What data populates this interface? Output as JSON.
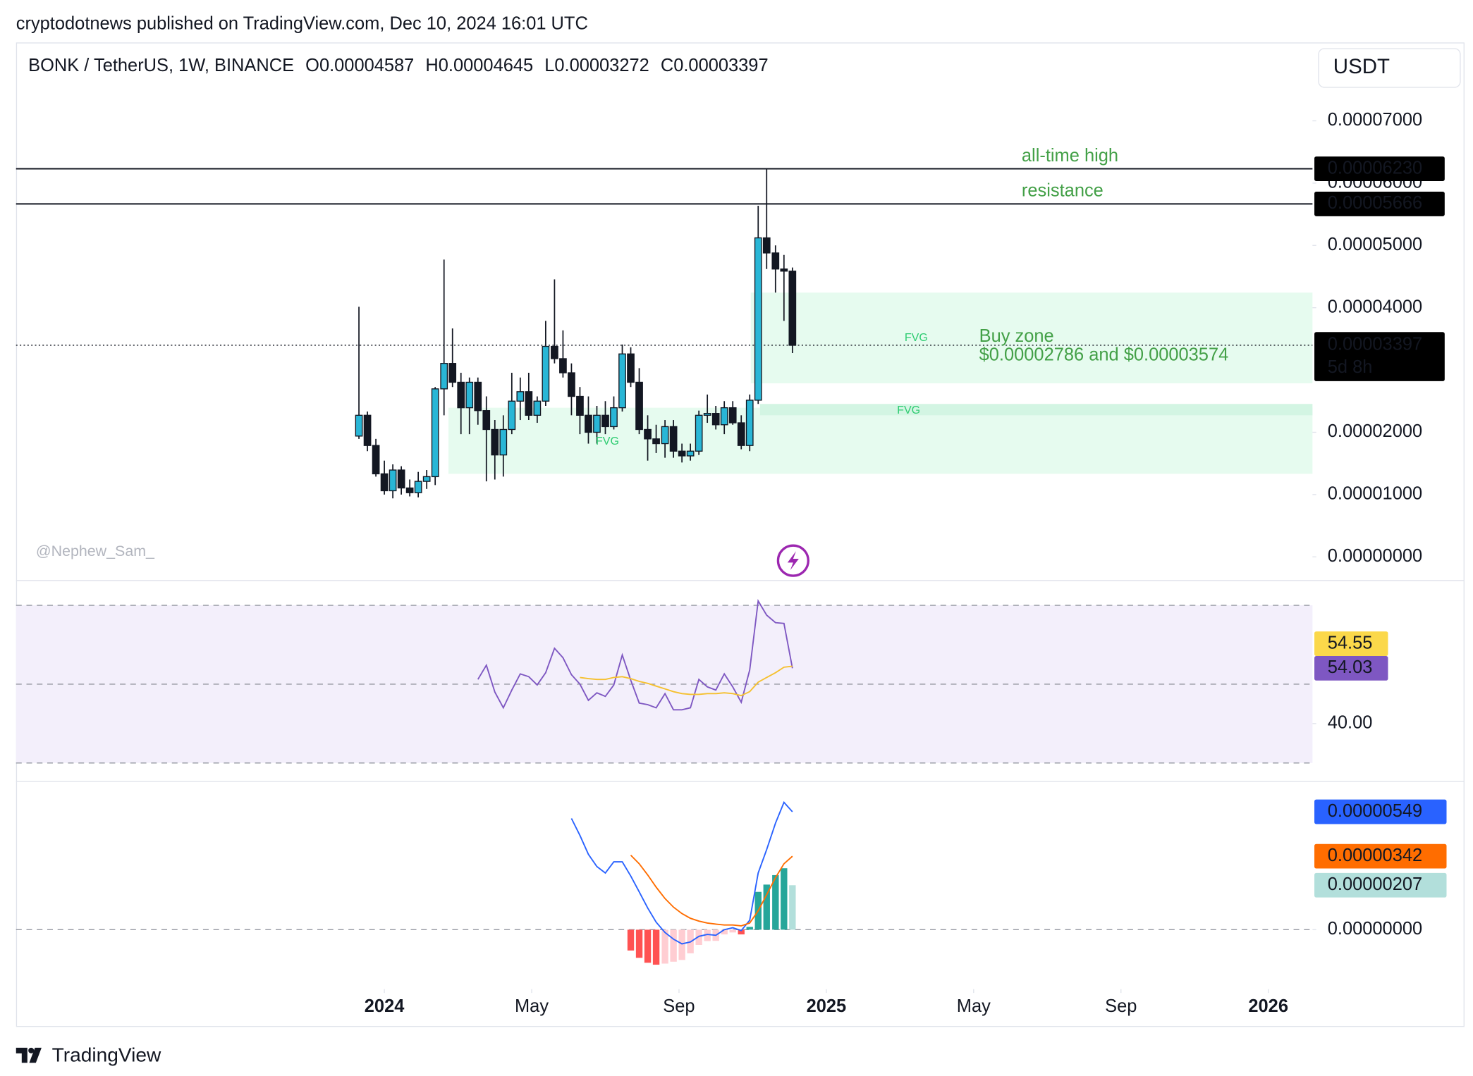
{
  "header": {
    "publisher": "cryptodotnews published on TradingView.com, Dec 10, 2024 16:01 UTC",
    "currency": "USDT",
    "footer": "TradingView"
  },
  "chart_data": [
    {
      "type": "candlestick",
      "title": "BONK / TetherUS, 1W, BINANCE",
      "ohlc_labels": [
        "O",
        "H",
        "L",
        "C"
      ],
      "x": [
        -0.69,
        -0.46,
        -0.23,
        0,
        0.23,
        0.46,
        0.69,
        0.92,
        1.15,
        1.38,
        1.62,
        1.85,
        2.08,
        2.31,
        2.54,
        2.77,
        3,
        3.23,
        3.46,
        3.69,
        3.92,
        4.15,
        4.38,
        4.62,
        4.85,
        5.08,
        5.31,
        5.54,
        5.77,
        6,
        6.23,
        6.46,
        6.69,
        6.92,
        7.15,
        7.38,
        7.62,
        7.85,
        8.08,
        8.31,
        8.54,
        8.77,
        9,
        9.23,
        9.46,
        9.69,
        9.92,
        10.15,
        10.38,
        10.62,
        10.85,
        11.08
      ],
      "open": [
        1.939e-05,
        2.273e-05,
        1.788e-05,
        1.333e-05,
        1.061e-05,
        1.394e-05,
        1.106e-05,
        1.03e-05,
        1.212e-05,
        1.288e-05,
        2.697e-05,
        3.106e-05,
        2.803e-05,
        2.394e-05,
        2.803e-05,
        2.348e-05,
        2.045e-05,
        1.636e-05,
        2.045e-05,
        2.5e-05,
        2.652e-05,
        2.273e-05,
        2.5e-05,
        3.379e-05,
        3.182e-05,
        2.955e-05,
        2.576e-05,
        2.273e-05,
        2e-05,
        2.273e-05,
        2.091e-05,
        2.394e-05,
        3.258e-05,
        2.803e-05,
        2.045e-05,
        1.894e-05,
        1.818e-05,
        2.091e-05,
        1.697e-05,
        1.621e-05,
        1.697e-05,
        2.273e-05,
        2.303e-05,
        2.121e-05,
        2.394e-05,
        2.152e-05,
        1.788e-05,
        2.515e-05,
        5.121e-05,
        4.879e-05,
        4.621e-05,
        4.587e-05
      ],
      "high": [
        4.015e-05,
        2.333e-05,
        1.894e-05,
        1.545e-05,
        1.485e-05,
        1.455e-05,
        1.242e-05,
        1.364e-05,
        1.394e-05,
        2.727e-05,
        4.773e-05,
        3.667e-05,
        2.955e-05,
        2.879e-05,
        2.879e-05,
        2.576e-05,
        2.197e-05,
        2.273e-05,
        2.955e-05,
        2.879e-05,
        2.955e-05,
        2.576e-05,
        3.788e-05,
        4.455e-05,
        3.636e-05,
        3.106e-05,
        2.727e-05,
        2.576e-05,
        2.424e-05,
        2.5e-05,
        2.576e-05,
        3.409e-05,
        3.364e-05,
        3.03e-05,
        2.273e-05,
        2.121e-05,
        2.197e-05,
        2.197e-05,
        1.818e-05,
        1.818e-05,
        2.348e-05,
        2.606e-05,
        2.424e-05,
        2.5e-05,
        2.5e-05,
        2.273e-05,
        2.606e-05,
        5.636e-05,
        6.23e-05,
        5e-05,
        4.848e-05,
        4.645e-05
      ],
      "low": [
        1.894e-05,
        1.697e-05,
        1.288e-05,
        1e-05,
        9.39e-06,
        1e-05,
        9.7e-06,
        9.55e-06,
        1.091e-05,
        1.152e-05,
        2.273e-05,
        2.727e-05,
        1.97e-05,
        1.97e-05,
        2.121e-05,
        1.212e-05,
        1.242e-05,
        1.288e-05,
        1.97e-05,
        2.197e-05,
        2.197e-05,
        2.152e-05,
        2.424e-05,
        3.106e-05,
        2.879e-05,
        2.273e-05,
        1.97e-05,
        1.818e-05,
        1.818e-05,
        1.97e-05,
        2.045e-05,
        2.333e-05,
        2.727e-05,
        1.97e-05,
        1.545e-05,
        1.667e-05,
        1.591e-05,
        1.591e-05,
        1.515e-05,
        1.545e-05,
        1.636e-05,
        2.152e-05,
        2.045e-05,
        1.97e-05,
        2.121e-05,
        1.727e-05,
        1.697e-05,
        2.455e-05,
        4.621e-05,
        4.242e-05,
        3.788e-05,
        3.272e-05
      ],
      "close": [
        2.273e-05,
        1.788e-05,
        1.333e-05,
        1.061e-05,
        1.394e-05,
        1.106e-05,
        1.03e-05,
        1.212e-05,
        1.288e-05,
        2.697e-05,
        3.106e-05,
        2.803e-05,
        2.394e-05,
        2.803e-05,
        2.348e-05,
        2.045e-05,
        1.636e-05,
        2.045e-05,
        2.5e-05,
        2.652e-05,
        2.273e-05,
        2.5e-05,
        3.379e-05,
        3.182e-05,
        2.955e-05,
        2.576e-05,
        2.273e-05,
        2e-05,
        2.273e-05,
        2.091e-05,
        2.394e-05,
        3.258e-05,
        2.803e-05,
        2.045e-05,
        1.894e-05,
        1.818e-05,
        2.091e-05,
        1.697e-05,
        1.621e-05,
        1.697e-05,
        2.273e-05,
        2.303e-05,
        2.121e-05,
        2.394e-05,
        2.152e-05,
        1.788e-05,
        2.515e-05,
        5.121e-05,
        4.879e-05,
        4.621e-05,
        4.587e-05,
        3.397e-05
      ],
      "up_color": "#29b6d6",
      "down_color": "#131722",
      "xlim": [
        -10,
        25.2
      ],
      "xticks": [
        {
          "value": 0,
          "label": "2024"
        },
        {
          "value": 4,
          "label": "May"
        },
        {
          "value": 8,
          "label": "Sep"
        },
        {
          "value": 12,
          "label": "2025"
        },
        {
          "value": 16,
          "label": "May"
        },
        {
          "value": 20,
          "label": "Sep"
        },
        {
          "value": 24,
          "label": "2026"
        }
      ],
      "ylim": [
        -3.64e-06,
        8.258e-05
      ],
      "yticks": [
        {
          "value": 0,
          "label": "0.00000000"
        },
        {
          "value": 1e-05,
          "label": "0.00001000"
        },
        {
          "value": 2e-05,
          "label": "0.00002000"
        },
        {
          "value": 4e-05,
          "label": "0.00004000"
        },
        {
          "value": 5e-05,
          "label": "0.00005000"
        },
        {
          "value": 6e-05,
          "label": "0.00006000"
        },
        {
          "value": 7e-05,
          "label": "0.00007000"
        }
      ],
      "hlines": [
        {
          "value": 6.23e-05,
          "label": "0.00006230",
          "text": "all-time high"
        },
        {
          "value": 5.666e-05,
          "text": "resistance"
        }
      ],
      "last_price_countdown": "5d 8h",
      "zones": [
        {
          "start": 1.74,
          "top": 2.394e-05,
          "bottom": 1.333e-05,
          "color": "#e6fbef"
        },
        {
          "start": 9.95,
          "top": 4.242e-05,
          "bottom": 2.786e-05,
          "color": "#e6fbef"
        },
        {
          "start": 10.2,
          "top": 2.455e-05,
          "bottom": 2.273e-05,
          "color": "#d3f5e3"
        }
      ],
      "annotations": [
        "FVG",
        "FVG",
        "FVG",
        "Buy zone",
        "$0.00002786 and $0.00003574"
      ],
      "watermark": "@Nephew_Sam_"
    },
    {
      "type": "line",
      "series": [
        {
          "color": "#7e57c2",
          "text_color": "#ffffff",
          "values": [
            null,
            null,
            null,
            null,
            null,
            null,
            null,
            null,
            null,
            null,
            null,
            null,
            null,
            null,
            51.2,
            54.8,
            48.0,
            44.0,
            48.5,
            52.6,
            51.9,
            49.8,
            52.9,
            59.1,
            56.7,
            52.4,
            50.0,
            45.9,
            47.8,
            46.9,
            49.8,
            57.4,
            51.0,
            45.2,
            44.8,
            44.0,
            47.6,
            43.5,
            43.5,
            44.0,
            51.2,
            49.3,
            48.5,
            52.6,
            49.3,
            45.4,
            53.6,
            71.1,
            67.5,
            65.6,
            65.4,
            54.03
          ]
        },
        {
          "color": "#f5c02e",
          "box_color": "#fbd84a",
          "text_color": "#131722",
          "values": [
            null,
            null,
            null,
            null,
            null,
            null,
            null,
            null,
            null,
            null,
            null,
            null,
            null,
            null,
            null,
            null,
            null,
            null,
            null,
            null,
            null,
            null,
            null,
            null,
            null,
            null,
            51.7,
            51.4,
            51.2,
            51.2,
            51.7,
            51.9,
            51.4,
            50.7,
            50.2,
            49.5,
            48.8,
            48.1,
            47.6,
            47.4,
            47.4,
            47.6,
            47.6,
            47.8,
            47.6,
            47.1,
            48.1,
            50.5,
            51.7,
            52.9,
            54.3,
            54.55
          ]
        }
      ],
      "ylim": [
        25.3,
        76.3
      ],
      "yticks": [
        {
          "value": 40,
          "label": "40.00"
        }
      ],
      "levels": [
        70,
        50,
        30
      ],
      "band": [
        30,
        70
      ],
      "band_color": "#f3effb"
    },
    {
      "type": "macd",
      "series": [
        {
          "color": "#2962ff",
          "text_color": "#ffffff",
          "values": [
            null,
            null,
            null,
            null,
            null,
            null,
            null,
            null,
            null,
            null,
            null,
            null,
            null,
            null,
            null,
            null,
            null,
            null,
            null,
            null,
            null,
            null,
            null,
            null,
            null,
            5.18e-06,
            4.39e-06,
            3.51e-06,
            2.94e-06,
            2.64e-06,
            3.16e-06,
            3.16e-06,
            2.5e-06,
            1.76e-06,
            1.01e-06,
            3.5e-07,
            -1.3e-07,
            -4.4e-07,
            -6.6e-07,
            -5.7e-07,
            -3.1e-07,
            -2.2e-07,
            -2.6e-07,
            0,
            9e-08,
            -4e-08,
            4.4e-07,
            2.64e-06,
            3.73e-06,
            4.96e-06,
            5.93e-06,
            5.49e-06
          ]
        },
        {
          "color": "#ff6d00",
          "text_color": "#ffffff",
          "values": [
            null,
            null,
            null,
            null,
            null,
            null,
            null,
            null,
            null,
            null,
            null,
            null,
            null,
            null,
            null,
            null,
            null,
            null,
            null,
            null,
            null,
            null,
            null,
            null,
            null,
            null,
            null,
            null,
            null,
            null,
            null,
            null,
            3.47e-06,
            3.07e-06,
            2.55e-06,
            1.98e-06,
            1.45e-06,
            1.05e-06,
            7.5e-07,
            5.3e-07,
            4e-07,
            3.1e-07,
            2.6e-07,
            2.2e-07,
            2.2e-07,
            1.8e-07,
            3.1e-07,
            8.8e-07,
            1.63e-06,
            2.42e-06,
            3.07e-06,
            3.42e-06
          ]
        }
      ],
      "histogram": {
        "colors": {
          "up_rising": "#26a69a",
          "up_falling": "#b2dfdb",
          "down_falling": "#ff5252",
          "down_rising": "#ffcdd2"
        },
        "text_color": "#131722",
        "values": [
          null,
          null,
          null,
          null,
          null,
          null,
          null,
          null,
          null,
          null,
          null,
          null,
          null,
          null,
          null,
          null,
          null,
          null,
          null,
          null,
          null,
          null,
          null,
          null,
          null,
          null,
          null,
          null,
          null,
          null,
          null,
          null,
          -9.7e-07,
          -1.31e-06,
          -1.54e-06,
          -1.63e-06,
          -1.58e-06,
          -1.49e-06,
          -1.41e-06,
          -1.1e-06,
          -7.1e-07,
          -5.3e-07,
          -5.2e-07,
          -2.2e-07,
          -1.3e-07,
          -2.2e-07,
          1.3e-07,
          1.76e-06,
          2.1e-06,
          2.54e-06,
          2.86e-06,
          2.07e-06
        ]
      },
      "ylim": [
        -2.77e-06,
        6.9e-06
      ],
      "yticks": [
        {
          "value": 0,
          "label": "0.00000000"
        }
      ],
      "levels": [
        0
      ]
    }
  ]
}
